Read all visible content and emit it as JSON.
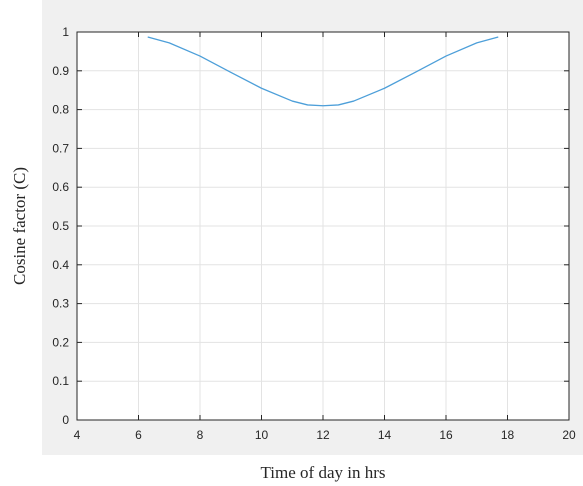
{
  "chart_data": {
    "type": "line",
    "title": "",
    "xlabel": "Time of day in hrs",
    "ylabel": "Cosine factor (C)",
    "xlim": [
      4,
      20
    ],
    "ylim": [
      0,
      1
    ],
    "grid": true,
    "x_ticks": [
      4,
      6,
      8,
      10,
      12,
      14,
      16,
      18,
      20
    ],
    "y_ticks": [
      0,
      0.1,
      0.2,
      0.3,
      0.4,
      0.5,
      0.6,
      0.7,
      0.8,
      0.9,
      1
    ],
    "x_tick_labels": [
      "4",
      "6",
      "8",
      "10",
      "12",
      "14",
      "16",
      "18",
      "20"
    ],
    "y_tick_labels": [
      "0",
      "0.1",
      "0.2",
      "0.3",
      "0.4",
      "0.5",
      "0.6",
      "0.7",
      "0.8",
      "0.9",
      "1"
    ],
    "series": [
      {
        "color": "#4d9fd9",
        "x": [
          6.3,
          7.0,
          8.0,
          9.0,
          10.0,
          11.0,
          11.5,
          12.0,
          12.5,
          13.0,
          14.0,
          15.0,
          16.0,
          17.0,
          17.7
        ],
        "y": [
          0.987,
          0.972,
          0.938,
          0.896,
          0.855,
          0.822,
          0.812,
          0.81,
          0.812,
          0.822,
          0.855,
          0.896,
          0.938,
          0.972,
          0.987
        ]
      }
    ]
  }
}
